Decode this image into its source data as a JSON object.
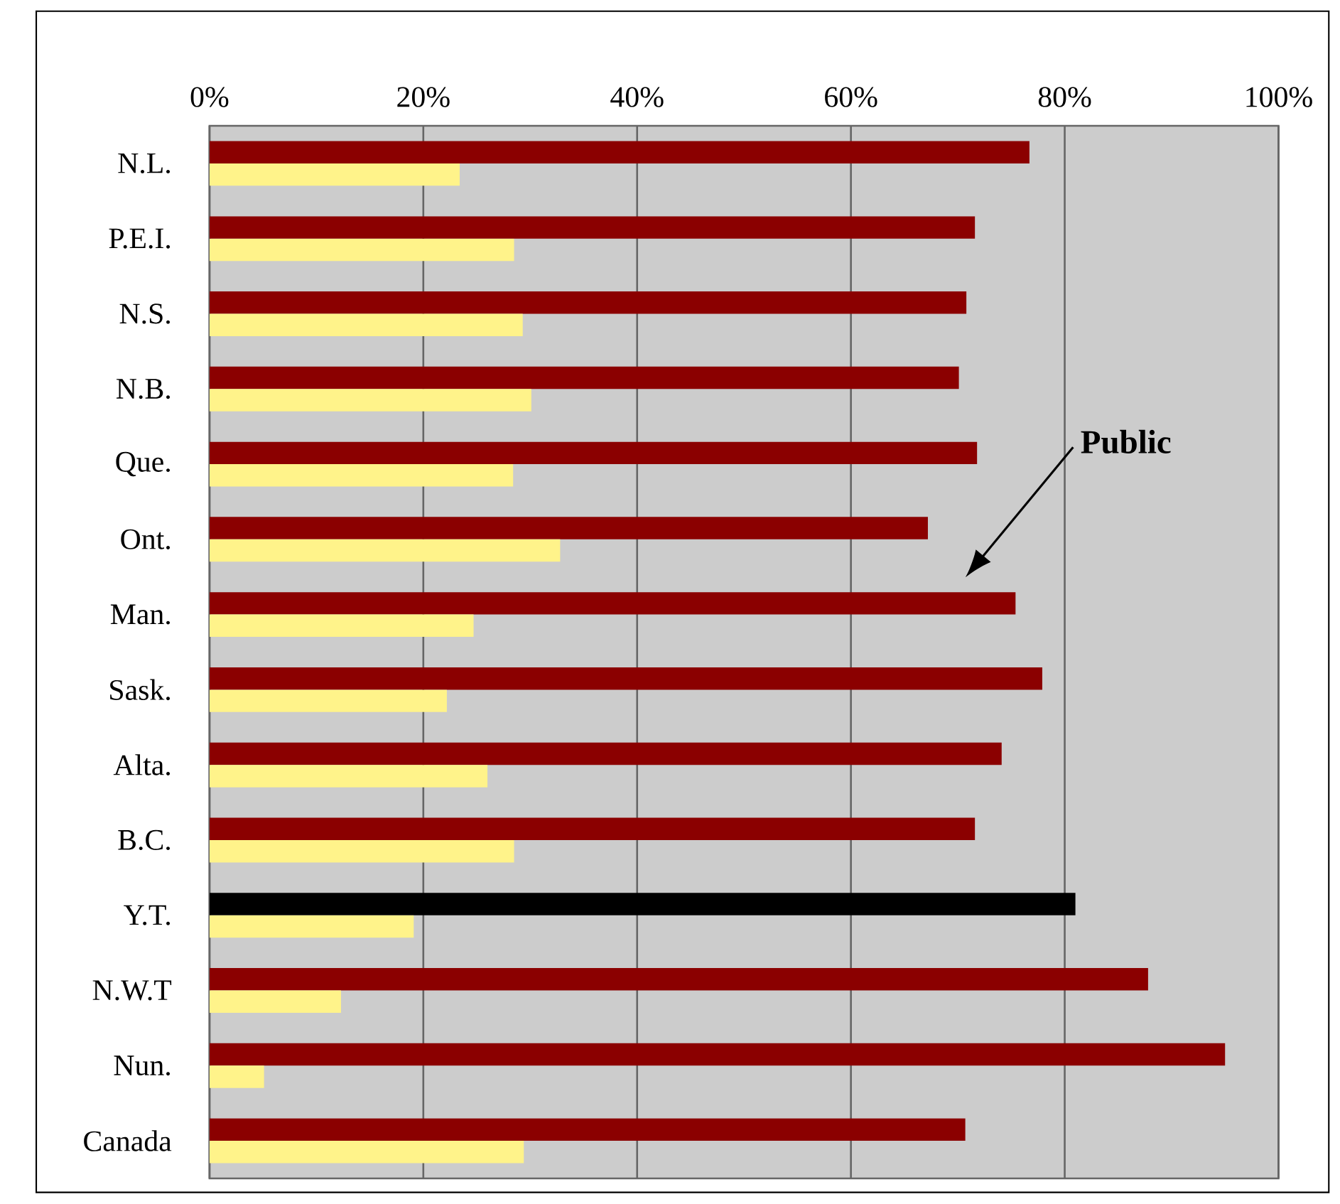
{
  "chart_data": {
    "type": "bar",
    "orientation": "horizontal",
    "categories": [
      "N.L.",
      "P.E.I.",
      "N.S.",
      "N.B.",
      "Que.",
      "Ont.",
      "Man.",
      "Sask.",
      "Alta.",
      "B.C.",
      "Y.T.",
      "N.W.T",
      "Nun.",
      "Canada"
    ],
    "series": [
      {
        "color": "#8b0000",
        "colors": [
          "#8b0000",
          "#8b0000",
          "#8b0000",
          "#8b0000",
          "#8b0000",
          "#8b0000",
          "#8b0000",
          "#8b0000",
          "#8b0000",
          "#8b0000",
          "#000000",
          "#8b0000",
          "#8b0000",
          "#8b0000"
        ],
        "values": [
          76.7,
          71.6,
          70.8,
          70.1,
          71.8,
          67.2,
          75.4,
          77.9,
          74.1,
          71.6,
          81.0,
          87.8,
          95.0,
          70.7
        ]
      },
      {
        "color": "#fff38a",
        "values": [
          23.4,
          28.5,
          29.3,
          30.1,
          28.4,
          32.8,
          24.7,
          22.2,
          26.0,
          28.5,
          19.1,
          12.3,
          5.1,
          29.4
        ]
      }
    ],
    "xlim": [
      0,
      100
    ],
    "xticks": [
      {
        "value": 0,
        "label": "0%"
      },
      {
        "value": 20,
        "label": "20%"
      },
      {
        "value": 40,
        "label": "40%"
      },
      {
        "value": 60,
        "label": "60%"
      },
      {
        "value": 80,
        "label": "80%"
      },
      {
        "value": 100,
        "label": "100%"
      }
    ],
    "grid": "x",
    "annotations": [
      "Public"
    ]
  }
}
